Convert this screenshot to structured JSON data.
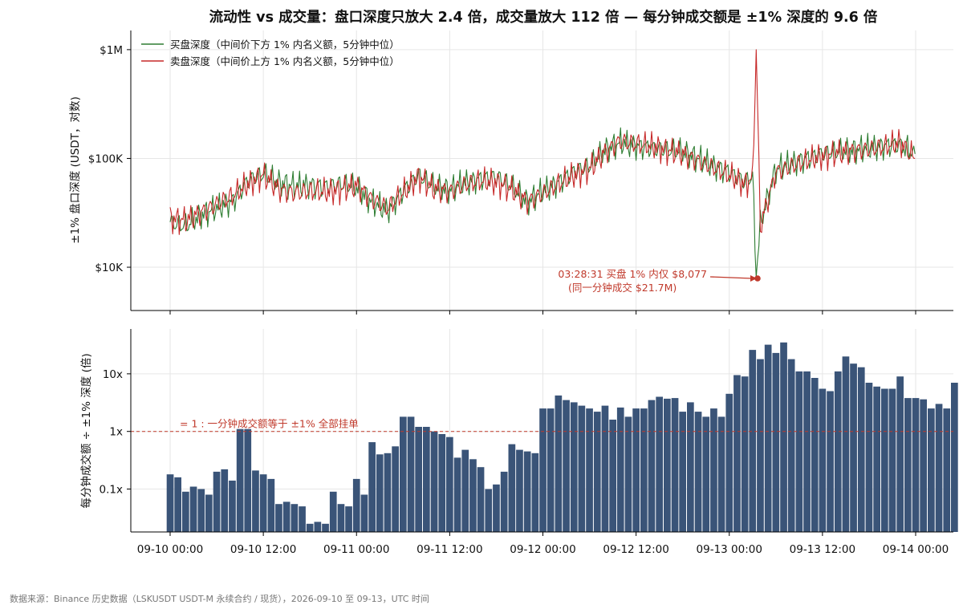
{
  "title": "流动性 vs 成交量：盘口深度只放大 2.4 倍，成交量放大 112 倍 — 每分钟成交额是 ±1% 深度的 9.6 倍",
  "footer": "数据来源：Binance 历史数据（LSKUSDT USDT-M 永续合约 / 现货），2026-09-10 至 09-13，UTC 时间",
  "colors": {
    "bid": "#2e7d32",
    "ask": "#c62828",
    "bar": "#3a5478",
    "ref": "#c0392b",
    "annotation": "#c0392b"
  },
  "chart_data": [
    {
      "type": "line",
      "ylabel": "±1% 盘口深度 (USDT，对数)",
      "yscale": "log",
      "ylim": [
        4000,
        1500000
      ],
      "yticks": [
        10000,
        100000,
        1000000
      ],
      "ytick_labels": [
        "$10K",
        "$100K",
        "$1M"
      ],
      "grid": true,
      "legend_position": "upper left",
      "x": [
        "09-10 00:00",
        "09-10 02:00",
        "09-10 04:00",
        "09-10 06:00",
        "09-10 08:00",
        "09-10 10:00",
        "09-10 12:00",
        "09-10 14:00",
        "09-10 16:00",
        "09-10 18:00",
        "09-10 20:00",
        "09-10 22:00",
        "09-11 00:00",
        "09-11 02:00",
        "09-11 04:00",
        "09-11 06:00",
        "09-11 08:00",
        "09-11 10:00",
        "09-11 12:00",
        "09-11 14:00",
        "09-11 16:00",
        "09-11 18:00",
        "09-11 20:00",
        "09-11 22:00",
        "09-12 00:00",
        "09-12 02:00",
        "09-12 04:00",
        "09-12 06:00",
        "09-12 08:00",
        "09-12 10:00",
        "09-12 12:00",
        "09-12 14:00",
        "09-12 16:00",
        "09-12 18:00",
        "09-12 20:00",
        "09-12 22:00",
        "09-13 00:00",
        "09-13 02:00",
        "09-13 03:00",
        "09-13 03:28",
        "09-13 04:00",
        "09-13 06:00",
        "09-13 08:00",
        "09-13 10:00",
        "09-13 12:00",
        "09-13 14:00",
        "09-13 16:00",
        "09-13 18:00",
        "09-13 20:00",
        "09-13 22:00",
        "09-13 23:55"
      ],
      "series": [
        {
          "name": "买盘深度（中间价下方 1% 内名义额，5分钟中位）",
          "values": [
            26000,
            24000,
            30000,
            35000,
            40000,
            62000,
            72000,
            60000,
            56000,
            57000,
            55000,
            58000,
            54000,
            40000,
            33000,
            50000,
            70000,
            55000,
            52000,
            60000,
            65000,
            68000,
            55000,
            40000,
            50000,
            60000,
            75000,
            85000,
            120000,
            140000,
            130000,
            125000,
            120000,
            115000,
            100000,
            85000,
            75000,
            60000,
            70000,
            8077,
            25000,
            80000,
            90000,
            100000,
            110000,
            115000,
            120000,
            125000,
            130000,
            135000,
            110000
          ]
        },
        {
          "name": "卖盘深度（中间价上方 1% 内名义额，5分钟中位）",
          "values": [
            28000,
            27000,
            32000,
            38000,
            45000,
            58000,
            70000,
            52000,
            48000,
            50000,
            49000,
            52000,
            56000,
            42000,
            35000,
            48000,
            68000,
            52000,
            50000,
            58000,
            62000,
            60000,
            52000,
            40000,
            48000,
            58000,
            70000,
            80000,
            115000,
            145000,
            135000,
            130000,
            118000,
            110000,
            95000,
            82000,
            70000,
            58000,
            65000,
            1000000,
            24000,
            75000,
            85000,
            95000,
            105000,
            112000,
            118000,
            122000,
            128000,
            140000,
            100000
          ]
        }
      ]
    },
    {
      "type": "bar",
      "ylabel": "每分钟成交额 ÷ ±1% 深度 (倍)",
      "yscale": "log",
      "ylim": [
        0.018,
        60
      ],
      "yticks": [
        0.1,
        1,
        10
      ],
      "ytick_labels": [
        "0.1x",
        "1x",
        "10x"
      ],
      "grid": true,
      "xlim": [
        "09-10 00:00",
        "09-14 00:00"
      ],
      "xtick_labels": [
        "09-10 00:00",
        "09-10 12:00",
        "09-11 00:00",
        "09-11 12:00",
        "09-12 00:00",
        "09-12 12:00",
        "09-13 00:00",
        "09-13 12:00",
        "09-14 00:00"
      ],
      "bar_interval_hours": 1,
      "values": [
        0.18,
        0.16,
        0.09,
        0.11,
        0.1,
        0.08,
        0.2,
        0.22,
        0.14,
        1.1,
        1.1,
        0.21,
        0.18,
        0.15,
        0.055,
        0.06,
        0.055,
        0.05,
        0.025,
        0.027,
        0.025,
        0.09,
        0.055,
        0.05,
        0.15,
        0.08,
        0.65,
        0.4,
        0.42,
        0.55,
        1.8,
        1.8,
        1.2,
        1.2,
        1.0,
        0.9,
        0.8,
        0.35,
        0.48,
        0.33,
        0.24,
        0.1,
        0.12,
        0.2,
        0.6,
        0.48,
        0.45,
        0.42,
        2.5,
        2.5,
        4.2,
        3.5,
        3.2,
        2.8,
        2.5,
        2.2,
        2.8,
        1.6,
        2.6,
        1.8,
        2.5,
        2.5,
        3.5,
        4.0,
        3.7,
        3.8,
        2.2,
        3.2,
        2.2,
        1.8,
        2.5,
        1.8,
        4.5,
        9.5,
        9.0,
        26,
        18,
        32,
        23,
        35,
        18,
        11,
        11,
        8.5,
        5.5,
        5.0,
        11,
        20,
        15,
        13,
        7.0,
        6.0,
        5.5,
        5.5,
        9.0,
        3.8,
        3.8,
        3.6,
        2.5,
        3.0,
        2.5,
        7.0
      ],
      "reference_line": {
        "value": 1,
        "label": "= 1 : 一分钟成交额等于 ±1% 全部挂单"
      }
    }
  ],
  "annotation": {
    "line1": "03:28:31 买盘 1% 内仅 $8,077",
    "line2": "(同一分钟成交 $21.7M)"
  }
}
